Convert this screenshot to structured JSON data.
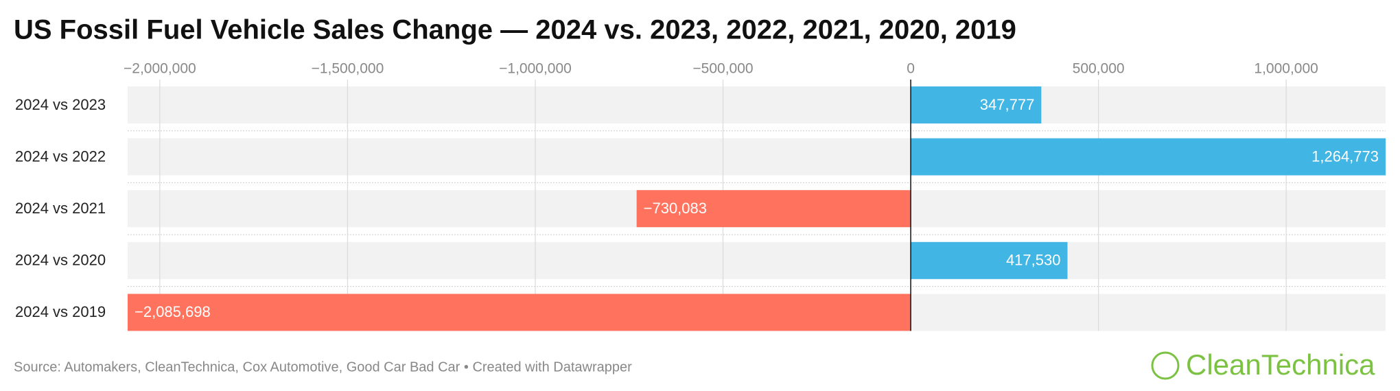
{
  "chart_data": {
    "type": "hbar",
    "title": "US Fossil Fuel Vehicle Sales Change — 2024 vs. 2023, 2022, 2021, 2020, 2019",
    "categories": [
      "2024 vs 2023",
      "2024 vs 2022",
      "2024 vs 2021",
      "2024 vs 2020",
      "2024 vs 2019"
    ],
    "values": [
      347777,
      1264773,
      -730083,
      417530,
      -2085698
    ],
    "value_labels": [
      "347,777",
      "1,264,773",
      "−730,083",
      "417,530",
      "−2,085,698"
    ],
    "positive_color": "#41b5e3",
    "negative_color": "#ff735e",
    "xlim": [
      -2085698,
      1264773
    ],
    "xticks": [
      {
        "value": -2000000,
        "label": "−2,000,000"
      },
      {
        "value": -1500000,
        "label": "−1,500,000"
      },
      {
        "value": -1000000,
        "label": "−1,000,000"
      },
      {
        "value": -500000,
        "label": "−500,000"
      },
      0,
      {
        "value": 500000,
        "label": "500,000"
      },
      {
        "value": 1000000,
        "label": "1,000,000"
      }
    ],
    "grid": true,
    "source": "Source: Automakers, CleanTechnica, Cox Automotive, Good Car Bad Car • Created with Datawrapper",
    "logo": "CleanTechnica"
  }
}
